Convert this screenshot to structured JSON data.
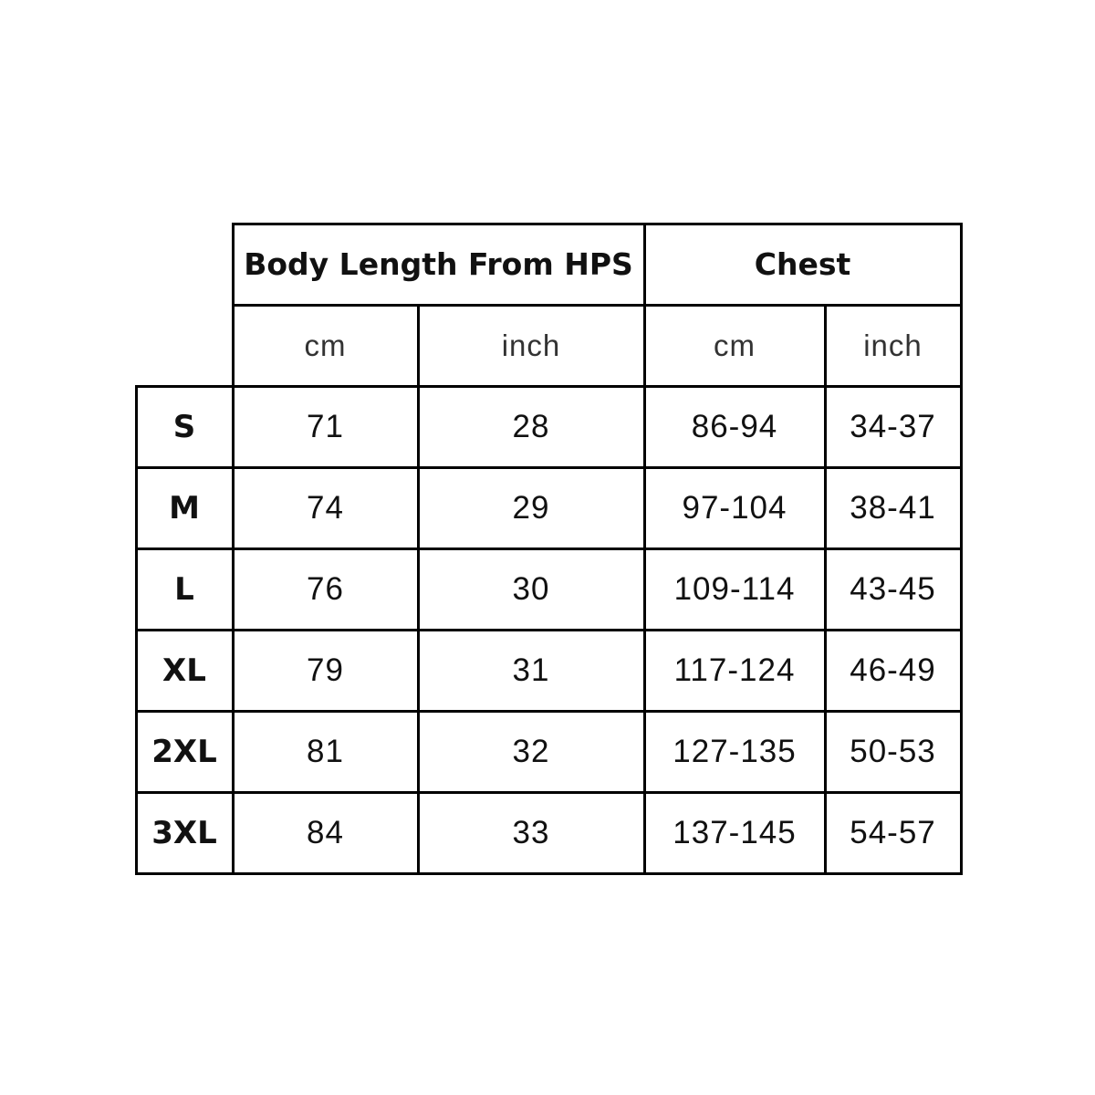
{
  "table": {
    "group_headers": [
      "Body Length From HPS",
      "Chest"
    ],
    "unit_headers": [
      "cm",
      "inch",
      "cm",
      "inch"
    ],
    "rows": [
      {
        "size": "S",
        "values": [
          "71",
          "28",
          "86-94",
          "34-37"
        ]
      },
      {
        "size": "M",
        "values": [
          "74",
          "29",
          "97-104",
          "38-41"
        ]
      },
      {
        "size": "L",
        "values": [
          "76",
          "30",
          "109-114",
          "43-45"
        ]
      },
      {
        "size": "XL",
        "values": [
          "79",
          "31",
          "117-124",
          "46-49"
        ]
      },
      {
        "size": "2XL",
        "values": [
          "81",
          "32",
          "127-135",
          "50-53"
        ]
      },
      {
        "size": "3XL",
        "values": [
          "84",
          "33",
          "137-145",
          "54-57"
        ]
      }
    ]
  }
}
